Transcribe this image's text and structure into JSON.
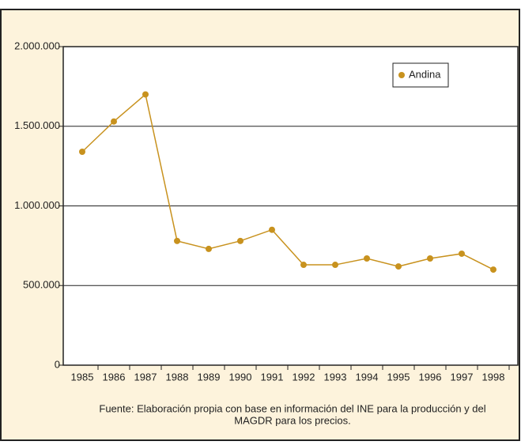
{
  "chart_data": {
    "type": "line",
    "categories": [
      "1985",
      "1986",
      "1987",
      "1988",
      "1989",
      "1990",
      "1991",
      "1992",
      "1993",
      "1994",
      "1995",
      "1996",
      "1997",
      "1998"
    ],
    "series": [
      {
        "name": "Andina",
        "color": "#c8921e",
        "values": [
          1340000,
          1530000,
          1700000,
          780000,
          730000,
          780000,
          850000,
          630000,
          630000,
          670000,
          620000,
          670000,
          700000,
          600000
        ]
      }
    ],
    "ylim": [
      0,
      2000000
    ],
    "yticks": [
      0,
      {
        "value": 500000,
        "label": "500.000"
      },
      {
        "value": 1000000,
        "label": "1.000.000"
      },
      {
        "value": 1500000,
        "label": "1.500.000"
      },
      {
        "value": 2000000,
        "label": "2.000.000"
      }
    ],
    "grid": true,
    "legend": "upper right",
    "footnote": [
      "Fuente: Elaboración propia con base en información del INE para la producción y del",
      "MAGDR para los precios."
    ]
  }
}
